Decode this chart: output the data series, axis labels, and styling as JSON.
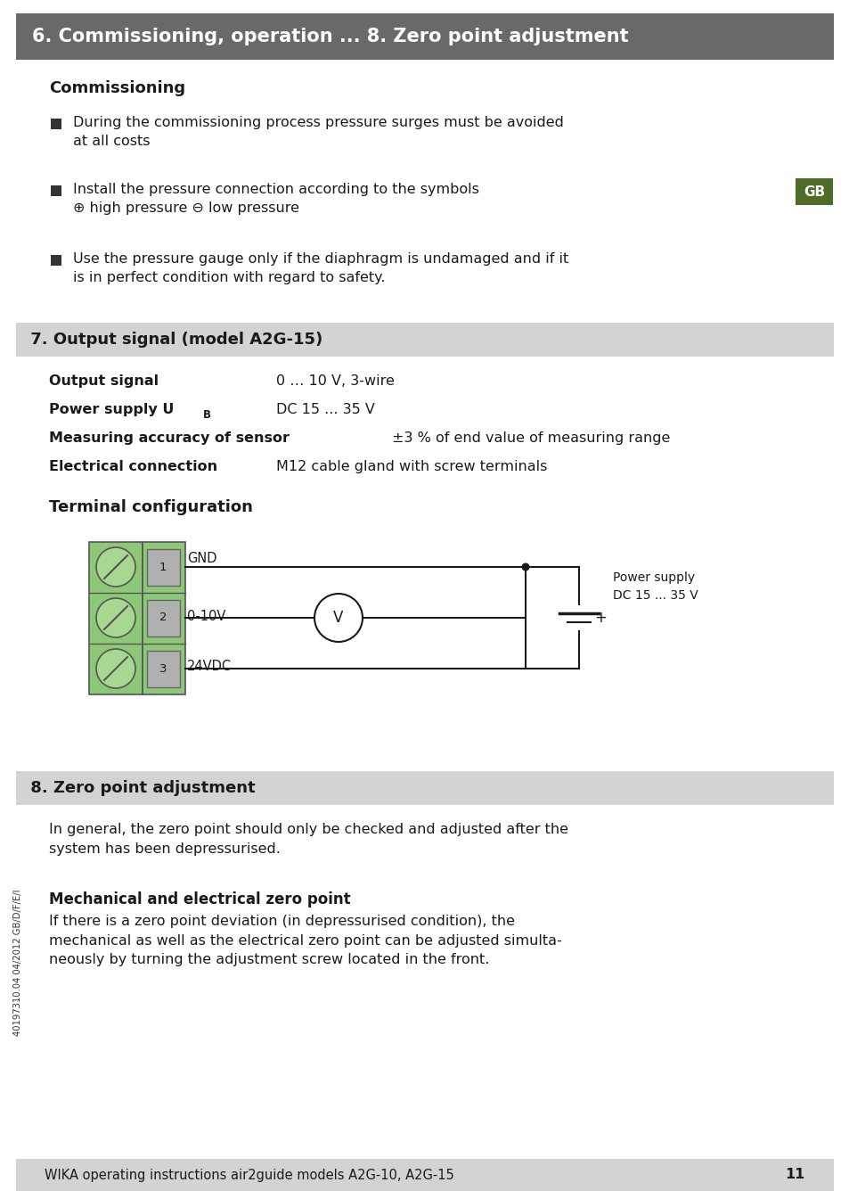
{
  "page_bg": "#ffffff",
  "header_bg": "#696969",
  "header_text": "6. Commissioning, operation ... 8. Zero point adjustment",
  "header_text_color": "#ffffff",
  "section2_bg": "#d3d3d3",
  "section2_text": " 7. Output signal (model A2G-15)",
  "section3_bg": "#d3d3d3",
  "section3_text": " 8. Zero point adjustment",
  "footer_bg": "#d3d3d3",
  "footer_text": "WIKA operating instructions air2guide models A2G-10, A2G-15",
  "footer_page": "11",
  "gb_badge_color": "#4e6b28",
  "gb_text": "GB",
  "connector_green": "#8dc878",
  "connector_green_dark": "#6aab50",
  "terminal_gray": "#b0b0b0",
  "wire_color": "#1a1a1a",
  "text_color": "#1a1a1a"
}
